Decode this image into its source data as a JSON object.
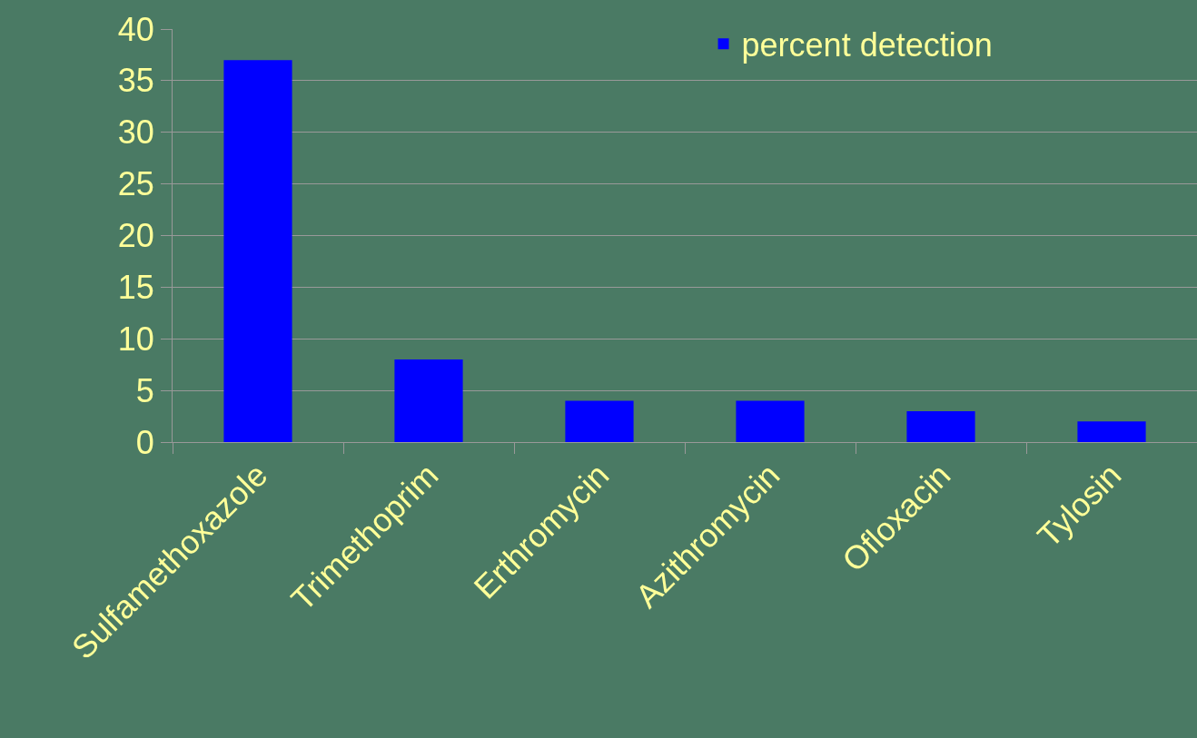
{
  "chart_data": {
    "type": "bar",
    "categories": [
      "Sulfamethoxazole",
      "Trimethoprim",
      "Erthromycin",
      "Azithromycin",
      "Ofloxacin",
      "Tylosin"
    ],
    "series": [
      {
        "name": "percent detection",
        "color": "#0000ff",
        "values": [
          37,
          8,
          4,
          4,
          3,
          2
        ]
      }
    ],
    "ylim": [
      0,
      40
    ],
    "yticks": [
      0,
      5,
      10,
      15,
      20,
      25,
      30,
      35,
      40
    ],
    "grid": "y",
    "legend": "top right"
  }
}
